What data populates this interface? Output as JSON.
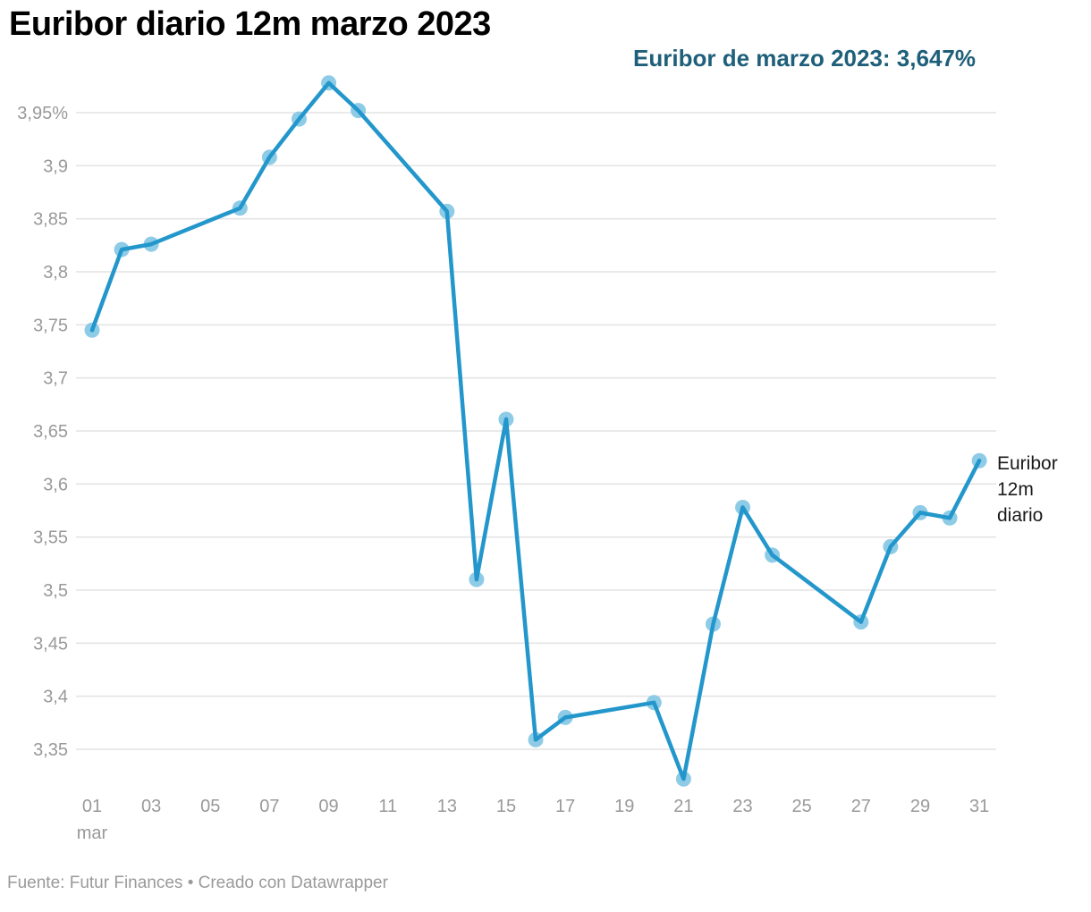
{
  "header": {
    "title": "Euribor diario 12m marzo 2023",
    "annotation": "Euribor de marzo 2023: 3,647%"
  },
  "footer": {
    "text": "Fuente: Futur Finances • Creado con Datawrapper"
  },
  "chart_data": {
    "type": "line",
    "title": "Euribor diario 12m marzo 2023",
    "annotation": "Euribor de marzo 2023: 3,647%",
    "series_label": "Euribor 12m diario",
    "x_month": "mar",
    "x_days": [
      1,
      2,
      3,
      6,
      7,
      8,
      9,
      10,
      13,
      14,
      15,
      16,
      17,
      20,
      21,
      22,
      23,
      24,
      27,
      28,
      29,
      30,
      31
    ],
    "values": [
      3.745,
      3.821,
      3.826,
      3.86,
      3.908,
      3.944,
      3.978,
      3.952,
      3.857,
      3.51,
      3.661,
      3.359,
      3.38,
      3.394,
      3.322,
      3.468,
      3.578,
      3.533,
      3.47,
      3.541,
      3.573,
      3.568,
      3.622
    ],
    "y_ticks": [
      {
        "value": 3.95,
        "label": "3,95%"
      },
      {
        "value": 3.9,
        "label": "3,9"
      },
      {
        "value": 3.85,
        "label": "3,85"
      },
      {
        "value": 3.8,
        "label": "3,8"
      },
      {
        "value": 3.75,
        "label": "3,75"
      },
      {
        "value": 3.7,
        "label": "3,7"
      },
      {
        "value": 3.65,
        "label": "3,65"
      },
      {
        "value": 3.6,
        "label": "3,6"
      },
      {
        "value": 3.55,
        "label": "3,55"
      },
      {
        "value": 3.5,
        "label": "3,5"
      },
      {
        "value": 3.45,
        "label": "3,45"
      },
      {
        "value": 3.4,
        "label": "3,4"
      },
      {
        "value": 3.35,
        "label": "3,35"
      }
    ],
    "x_ticks": [
      {
        "day": 1,
        "label": "01",
        "sub": "mar"
      },
      {
        "day": 3,
        "label": "03"
      },
      {
        "day": 5,
        "label": "05"
      },
      {
        "day": 7,
        "label": "07"
      },
      {
        "day": 9,
        "label": "09"
      },
      {
        "day": 11,
        "label": "11"
      },
      {
        "day": 13,
        "label": "13"
      },
      {
        "day": 15,
        "label": "15"
      },
      {
        "day": 17,
        "label": "17"
      },
      {
        "day": 19,
        "label": "19"
      },
      {
        "day": 21,
        "label": "21"
      },
      {
        "day": 23,
        "label": "23"
      },
      {
        "day": 25,
        "label": "25"
      },
      {
        "day": 27,
        "label": "27"
      },
      {
        "day": 29,
        "label": "29"
      },
      {
        "day": 31,
        "label": "31"
      }
    ],
    "ylim": [
      3.35,
      3.95
    ],
    "grid": true,
    "legend_position": "right-of-line-end",
    "colors": {
      "line": "#2397cb",
      "marker": "#8ecbe7",
      "grid": "#e4e4e4",
      "axis_text": "#999999",
      "annotation": "#1e5f7a"
    }
  }
}
